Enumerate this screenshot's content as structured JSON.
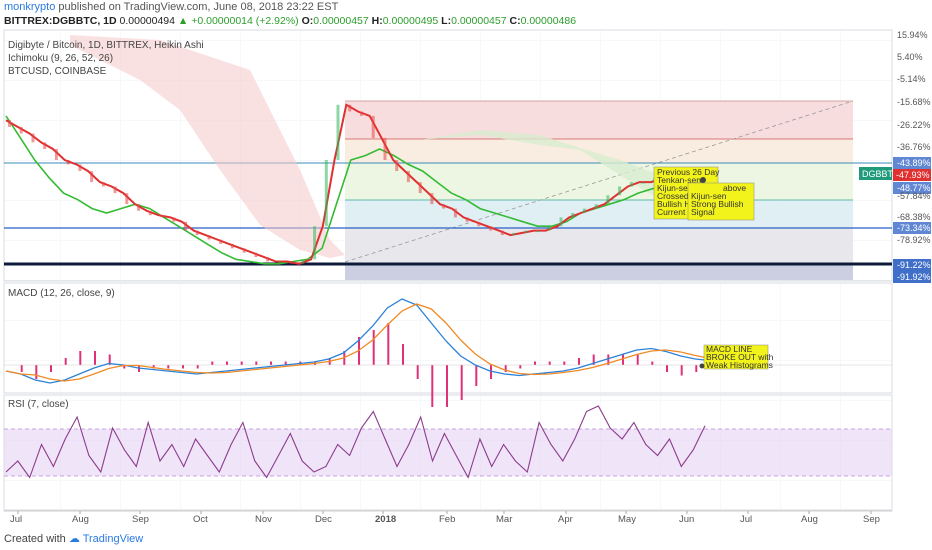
{
  "header": {
    "author": "monkrypto",
    "published": "published on TradingView.com, June 08, 2018 23:22 EST"
  },
  "ticker": {
    "symbol": "BITTREX:DGBBTC, 1D",
    "last": "0.00000494",
    "change": "▲ +0.00000014 (+2.92%)",
    "o_label": "O:",
    "o": "0.00000457",
    "h_label": "H:",
    "h": "0.00000495",
    "l_label": "L:",
    "l": "0.00000457",
    "c_label": "C:",
    "c": "0.00000486"
  },
  "legend": {
    "main_title": "Digibyte / Bitcoin, 1D, BITTREX, Heikin Ashi",
    "ichimoku": "Ichimoku (9, 26, 52, 26)",
    "btcusd": "BTCUSD, COINBASE",
    "macd": "MACD (12, 26, close, 9)",
    "rsi": "RSI (7, close)"
  },
  "footer": {
    "created_with": "Created with",
    "brand": "TradingView"
  },
  "colors": {
    "price": "#e03030",
    "ichimoku_conv": "#33bb33",
    "ichimoku_base": "#8a1a1a",
    "macd_line": "#2c82d6",
    "signal_line": "#f08a24",
    "histogram": "#e0307a",
    "rsi": "#8b3c8b",
    "rsi_band": "#e6d2f5",
    "fib_red": "#f6d7d7",
    "fib_green": "#eaf5df",
    "fib_blue": "#d8e8f5",
    "annotation": "#f3f31c"
  },
  "chart_data": [
    {
      "type": "line",
      "name": "price-pane",
      "scale": "log-percent",
      "y_ticks": [
        "15.94%",
        "5.40%",
        "-5.14%",
        "-15.68%",
        "-26.22%",
        "-36.76%",
        "-43.89%",
        "-47.93%",
        "-48.77%",
        "-57.84%",
        "-68.38%",
        "-73.34%",
        "-78.92%",
        "-91.22%",
        "-91.92%"
      ],
      "highlighted_ticks": [
        "-43.89%",
        "-48.77%",
        "-73.34%",
        "-91.22%",
        "-91.92%"
      ],
      "symbol_tag": "DGBBTC",
      "current_value_tag": "-47.93%",
      "x_ticks": [
        "Jul",
        "Aug",
        "Sep",
        "Oct",
        "Nov",
        "Dec",
        "2018",
        "Feb",
        "Mar",
        "Apr",
        "May",
        "Jun",
        "Jul",
        "Aug",
        "Sep"
      ],
      "annotations": [
        "Previous 26 Day",
        "Tenkan-sen",
        "Kijun-sen",
        "Crossed",
        "Bullish Here",
        "Current Price",
        "above",
        "Kijun-sen",
        "Strong Bullish",
        "Signal"
      ],
      "series": [
        {
          "name": "BTCUSD, COINBASE",
          "values": [
            -22,
            -25,
            -28,
            -32,
            -35,
            -40,
            -42,
            -45,
            -50,
            -52,
            -55,
            -60,
            -63,
            -65,
            -66,
            -68,
            -72,
            -74,
            -76,
            -78,
            -80,
            -82,
            -84,
            -86,
            -86,
            -87,
            -85,
            -70,
            -40,
            -15,
            -18,
            -20,
            -30,
            -40,
            -45,
            -50,
            -55,
            -60,
            -62,
            -66,
            -68,
            -70,
            -72,
            -74,
            -73,
            -72,
            -72,
            -70,
            -66,
            -64,
            -62,
            -60,
            -56,
            -52,
            -50,
            -50,
            -48,
            -48,
            -47,
            -48,
            -47
          ]
        },
        {
          "name": "Tenkan-sen",
          "values": [
            -20,
            -30,
            -40,
            -48,
            -55,
            -58,
            -62,
            -64,
            -62,
            -60,
            -62,
            -66,
            -70,
            -74,
            -78,
            -82,
            -85,
            -86,
            -87,
            -87,
            -86,
            -85,
            -80,
            -60,
            -40,
            -38,
            -35,
            -38,
            -42,
            -45,
            -50,
            -55,
            -58,
            -62,
            -64,
            -66,
            -68,
            -70,
            -70,
            -68,
            -64,
            -62,
            -60,
            -58,
            -55,
            -53,
            -52,
            -50,
            -49,
            -48
          ]
        }
      ]
    },
    {
      "type": "line",
      "name": "macd-pane",
      "series": [
        {
          "name": "MACD (12, 26, close, 9)",
          "values": [
            -0.2,
            -0.3,
            -0.5,
            -0.6,
            -0.5,
            -0.3,
            -0.1,
            0.05,
            0.0,
            -0.1,
            -0.15,
            -0.2,
            -0.25,
            -0.3,
            -0.25,
            -0.2,
            -0.15,
            -0.1,
            -0.05,
            0.0,
            0.05,
            0.1,
            0.2,
            0.4,
            0.8,
            1.3,
            1.9,
            2.2,
            2.0,
            1.4,
            0.8,
            0.3,
            0.0,
            -0.2,
            -0.3,
            -0.35,
            -0.3,
            -0.25,
            -0.2,
            -0.1,
            0.05,
            0.2,
            0.35,
            0.5,
            0.55,
            0.45,
            0.3,
            0.2,
            0.15
          ]
        }
      ],
      "annotations": [
        "MACD LINE",
        "BROKE OUT with",
        "Weak Histograms"
      ]
    },
    {
      "type": "line",
      "name": "rsi-pane",
      "ylim": [
        0,
        100
      ],
      "bands": [
        30,
        70
      ],
      "series": [
        {
          "name": "RSI (7, close)",
          "values": [
            30,
            40,
            25,
            55,
            35,
            60,
            80,
            45,
            30,
            70,
            50,
            35,
            75,
            40,
            55,
            35,
            60,
            45,
            30,
            55,
            75,
            40,
            25,
            45,
            65,
            40,
            30,
            35,
            55,
            45,
            70,
            85,
            60,
            35,
            55,
            80,
            40,
            65,
            45,
            25,
            60,
            35,
            55,
            40,
            30,
            75,
            55,
            40,
            60,
            85,
            90,
            70,
            60,
            75,
            55,
            45,
            60,
            35,
            50,
            72
          ]
        }
      ]
    }
  ]
}
